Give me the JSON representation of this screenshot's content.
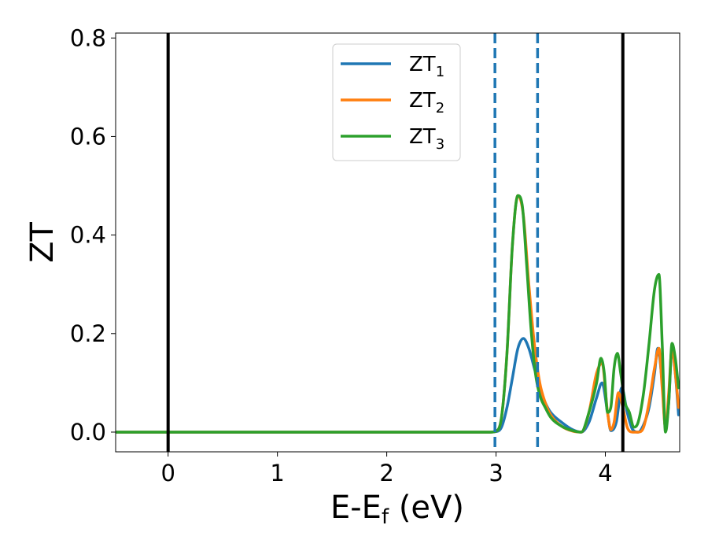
{
  "chart_data": {
    "type": "line",
    "xlabel": "E-E",
    "xlabel_sub": "f",
    "xlabel_unit": "(eV)",
    "ylabel": "ZT",
    "xlim": [
      -0.48,
      4.68
    ],
    "ylim": [
      -0.04,
      0.81
    ],
    "xticks": [
      0,
      1,
      2,
      3,
      4
    ],
    "xtick_labels": [
      "0",
      "1",
      "2",
      "3",
      "4"
    ],
    "yticks": [
      0.0,
      0.2,
      0.4,
      0.6,
      0.8
    ],
    "ytick_labels": [
      "0.0",
      "0.2",
      "0.4",
      "0.6",
      "0.8"
    ],
    "legend_position": "upper center",
    "vlines": [
      {
        "x": 0.0,
        "style": "solid",
        "color": "#000000"
      },
      {
        "x": 4.16,
        "style": "solid",
        "color": "#000000"
      },
      {
        "x": 2.99,
        "style": "dashed",
        "color": "#1f77b4"
      },
      {
        "x": 3.38,
        "style": "dashed",
        "color": "#1f77b4"
      }
    ],
    "series": [
      {
        "name": "ZT",
        "name_sub": "1",
        "color": "#1f77b4",
        "x": [
          -0.48,
          2.95,
          3.0,
          3.05,
          3.1,
          3.15,
          3.2,
          3.25,
          3.3,
          3.35,
          3.4,
          3.45,
          3.5,
          3.6,
          3.7,
          3.78,
          3.85,
          3.92,
          3.97,
          4.02,
          4.05,
          4.1,
          4.15,
          4.2,
          4.25,
          4.3,
          4.35,
          4.4,
          4.45,
          4.48,
          4.52,
          4.55,
          4.58,
          4.61,
          4.64,
          4.67
        ],
        "y": [
          0.0,
          0.0,
          0.001,
          0.01,
          0.05,
          0.11,
          0.17,
          0.19,
          0.17,
          0.13,
          0.09,
          0.06,
          0.04,
          0.02,
          0.005,
          0.0,
          0.02,
          0.07,
          0.1,
          0.04,
          0.003,
          0.02,
          0.09,
          0.04,
          0.005,
          0.0,
          0.015,
          0.05,
          0.12,
          0.17,
          0.1,
          0.01,
          0.06,
          0.17,
          0.12,
          0.035
        ]
      },
      {
        "name": "ZT",
        "name_sub": "2",
        "color": "#ff7f0e",
        "x": [
          -0.48,
          2.95,
          3.0,
          3.05,
          3.1,
          3.15,
          3.2,
          3.25,
          3.3,
          3.35,
          3.4,
          3.45,
          3.5,
          3.6,
          3.7,
          3.78,
          3.85,
          3.92,
          3.97,
          4.02,
          4.05,
          4.08,
          4.12,
          4.16,
          4.2,
          4.25,
          4.3,
          4.35,
          4.4,
          4.45,
          4.49,
          4.52,
          4.55,
          4.58,
          4.61,
          4.64,
          4.67
        ],
        "y": [
          0.0,
          0.0,
          0.002,
          0.03,
          0.16,
          0.38,
          0.48,
          0.44,
          0.3,
          0.18,
          0.1,
          0.06,
          0.035,
          0.012,
          0.002,
          0.0,
          0.04,
          0.12,
          0.14,
          0.04,
          0.005,
          0.02,
          0.08,
          0.05,
          0.01,
          0.0,
          0.0,
          0.01,
          0.06,
          0.13,
          0.17,
          0.09,
          0.01,
          0.08,
          0.17,
          0.12,
          0.05
        ]
      },
      {
        "name": "ZT",
        "name_sub": "3",
        "color": "#2ca02c",
        "x": [
          -0.48,
          2.95,
          3.0,
          3.05,
          3.1,
          3.15,
          3.2,
          3.24,
          3.28,
          3.32,
          3.36,
          3.4,
          3.45,
          3.5,
          3.6,
          3.7,
          3.78,
          3.85,
          3.92,
          3.96,
          3.99,
          4.02,
          4.05,
          4.08,
          4.11,
          4.14,
          4.18,
          4.22,
          4.26,
          4.3,
          4.35,
          4.4,
          4.45,
          4.49,
          4.52,
          4.55,
          4.58,
          4.61,
          4.64,
          4.67
        ],
        "y": [
          0.0,
          0.0,
          0.002,
          0.03,
          0.16,
          0.38,
          0.48,
          0.46,
          0.34,
          0.21,
          0.12,
          0.075,
          0.05,
          0.03,
          0.012,
          0.003,
          0.0,
          0.04,
          0.1,
          0.15,
          0.12,
          0.04,
          0.05,
          0.13,
          0.16,
          0.12,
          0.06,
          0.04,
          0.01,
          0.02,
          0.08,
          0.18,
          0.29,
          0.32,
          0.18,
          0.0,
          0.06,
          0.18,
          0.15,
          0.09
        ]
      }
    ]
  }
}
